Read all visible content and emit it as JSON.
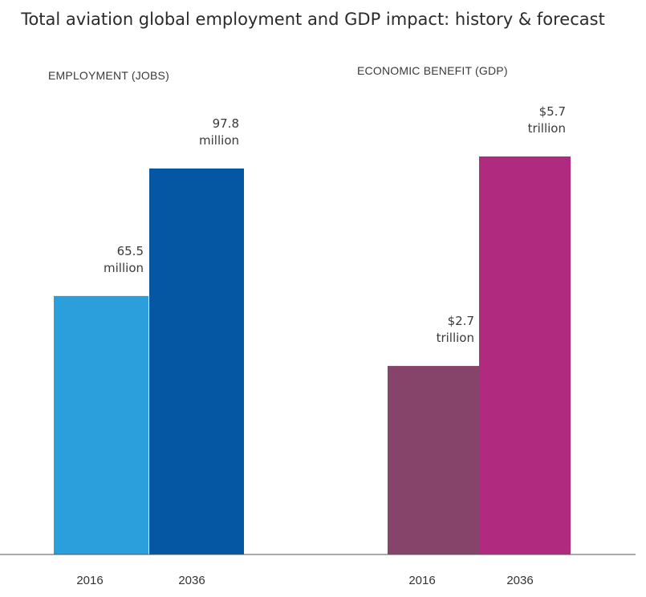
{
  "title": "Total aviation global employment and GDP impact: history & forecast",
  "chart_data": [
    {
      "type": "bar",
      "title": "EMPLOYMENT (JOBS)",
      "categories": [
        "2016",
        "2036"
      ],
      "values": [
        65.5,
        97.8
      ],
      "data_labels": [
        [
          "65.5",
          "million"
        ],
        [
          "97.8",
          "million"
        ]
      ],
      "unit": "million",
      "colors": [
        "#2b9fdb",
        "#0657a3"
      ],
      "ylim": [
        0,
        110
      ],
      "grid": false,
      "legend": "none"
    },
    {
      "type": "bar",
      "title": "ECONOMIC BENEFIT (GDP)",
      "categories": [
        "2016",
        "2036"
      ],
      "values": [
        2.7,
        5.7
      ],
      "data_labels": [
        [
          "$2.7",
          "trillion"
        ],
        [
          "$5.7",
          "trillion"
        ]
      ],
      "unit": "trillion",
      "colors": [
        "#86446a",
        "#b02b7f"
      ],
      "ylim": [
        0,
        6.1
      ],
      "grid": false,
      "legend": "none"
    }
  ]
}
